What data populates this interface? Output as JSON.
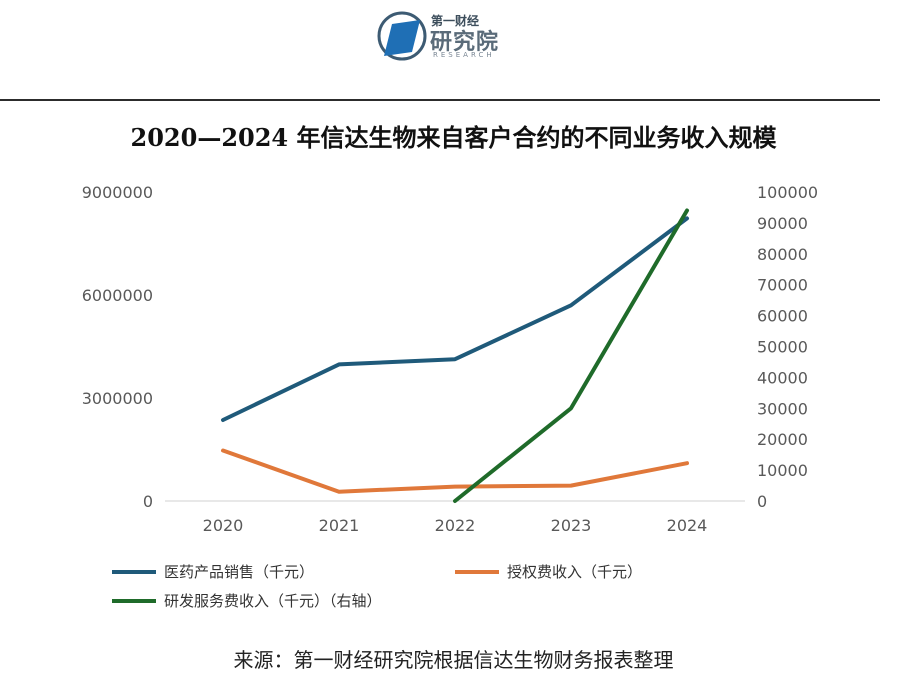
{
  "logo": {
    "small_text": "第一财经",
    "big_text": "研究院",
    "sub_text": "RESEARCH"
  },
  "colors": {
    "product": "#1f5a7a",
    "license": "#e0783a",
    "rd": "#1f6b2a"
  },
  "chart_data": {
    "type": "line",
    "title": "2020—2024 年信达生物来自客户合约的不同业务收入规模",
    "categories": [
      "2020",
      "2021",
      "2022",
      "2023",
      "2024"
    ],
    "y_left": {
      "ticks": [
        "0",
        "3000000",
        "6000000",
        "9000000"
      ],
      "range": [
        0,
        9000000
      ]
    },
    "y_right": {
      "ticks": [
        "0",
        "10000",
        "20000",
        "30000",
        "40000",
        "50000",
        "60000",
        "70000",
        "80000",
        "90000",
        "100000"
      ],
      "range": [
        0,
        100000
      ]
    },
    "series": [
      {
        "name": "医药产品销售（千元）",
        "axis": "left",
        "color": "#1f5a7a",
        "values": [
          2360000,
          3980000,
          4130000,
          5700000,
          8230000
        ]
      },
      {
        "name": "授权费收入（千元）",
        "axis": "left",
        "color": "#e0783a",
        "values": [
          1470000,
          270000,
          420000,
          450000,
          1100000
        ]
      },
      {
        "name": "研发服务费收入（千元）（右轴）",
        "axis": "right",
        "color": "#1f6b2a",
        "values": [
          null,
          null,
          0,
          30000,
          94000
        ]
      }
    ],
    "grid": false,
    "legend_position": "bottom"
  },
  "source": "来源：第一财经研究院根据信达生物财务报表整理"
}
